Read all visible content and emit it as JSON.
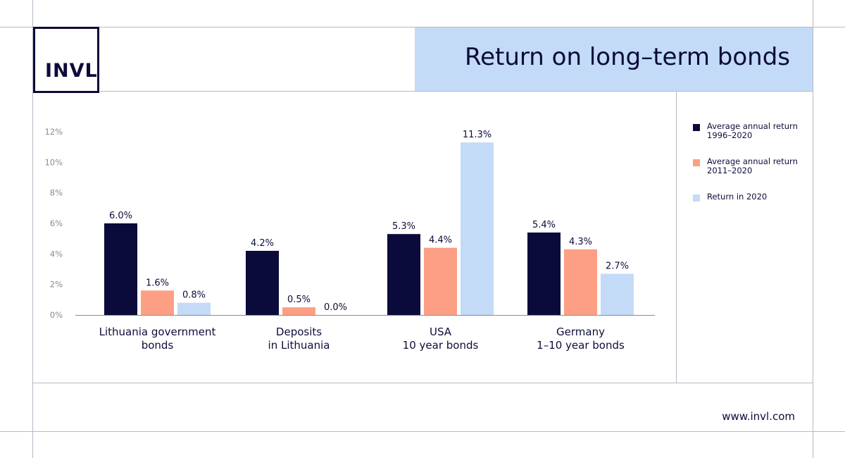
{
  "brand": {
    "logo_text": "INVL",
    "website": "www.invl.com"
  },
  "title": "Return on long–term bonds",
  "chart_data": {
    "type": "bar",
    "categories": [
      "Lithuania government\nbonds",
      "Deposits\nin Lithuania",
      "USA\n10 year bonds",
      "Germany\n1–10 year bonds"
    ],
    "series": [
      {
        "name": "Average annual return\n1996–2020",
        "color": "#0b0b3b",
        "values": [
          6.0,
          4.2,
          5.3,
          5.4
        ],
        "labels": [
          "6.0%",
          "4.2%",
          "5.3%",
          "5.4%"
        ]
      },
      {
        "name": "Average annual return\n2011–2020",
        "color": "#fd9f84",
        "values": [
          1.6,
          0.5,
          4.4,
          4.3
        ],
        "labels": [
          "1.6%",
          "0.5%",
          "4.4%",
          "4.3%"
        ]
      },
      {
        "name": "Return in 2020",
        "color": "#c3dbf6",
        "values": [
          0.8,
          0.0,
          11.3,
          2.7
        ],
        "labels": [
          "0.8%",
          "0.0%",
          "11.3%",
          "2.7%"
        ]
      }
    ],
    "yticks": [
      "0%",
      "2%",
      "4%",
      "6%",
      "8%",
      "10%",
      "12%"
    ],
    "ylim": [
      0,
      12
    ],
    "legend_position": "right",
    "grid": false
  }
}
